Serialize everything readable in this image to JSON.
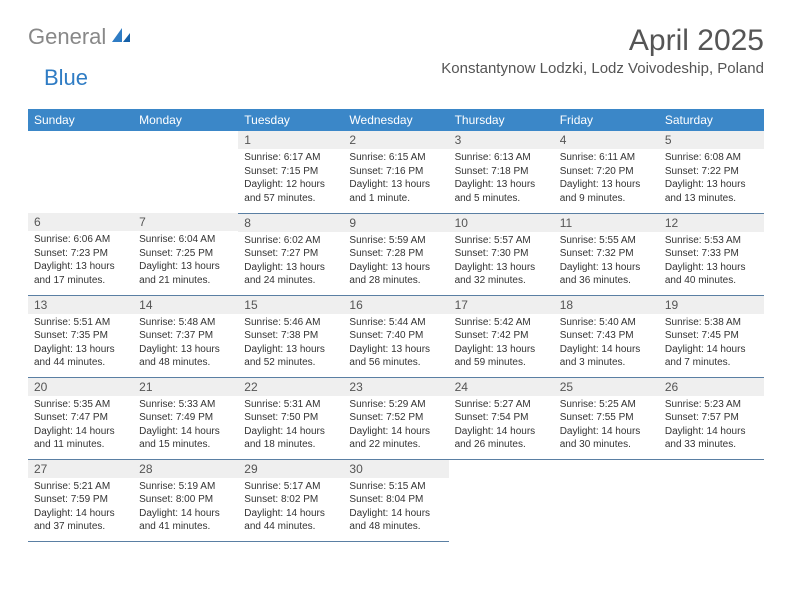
{
  "logo": {
    "text_gray": "General",
    "text_blue": "Blue"
  },
  "title": "April 2025",
  "subtitle": "Konstantynow Lodzki, Lodz Voivodeship, Poland",
  "colors": {
    "header_bg": "#3b87c8",
    "header_text": "#ffffff",
    "daynum_bg": "#efefef",
    "cell_border": "#5a7fa3",
    "logo_gray": "#888888",
    "logo_blue": "#2f7cc4",
    "background": "#ffffff",
    "body_text": "#333333"
  },
  "day_names": [
    "Sunday",
    "Monday",
    "Tuesday",
    "Wednesday",
    "Thursday",
    "Friday",
    "Saturday"
  ],
  "weeks": [
    [
      null,
      null,
      {
        "n": "1",
        "sr": "6:17 AM",
        "ss": "7:15 PM",
        "dl": "12 hours and 57 minutes."
      },
      {
        "n": "2",
        "sr": "6:15 AM",
        "ss": "7:16 PM",
        "dl": "13 hours and 1 minute."
      },
      {
        "n": "3",
        "sr": "6:13 AM",
        "ss": "7:18 PM",
        "dl": "13 hours and 5 minutes."
      },
      {
        "n": "4",
        "sr": "6:11 AM",
        "ss": "7:20 PM",
        "dl": "13 hours and 9 minutes."
      },
      {
        "n": "5",
        "sr": "6:08 AM",
        "ss": "7:22 PM",
        "dl": "13 hours and 13 minutes."
      }
    ],
    [
      {
        "n": "6",
        "sr": "6:06 AM",
        "ss": "7:23 PM",
        "dl": "13 hours and 17 minutes."
      },
      {
        "n": "7",
        "sr": "6:04 AM",
        "ss": "7:25 PM",
        "dl": "13 hours and 21 minutes."
      },
      {
        "n": "8",
        "sr": "6:02 AM",
        "ss": "7:27 PM",
        "dl": "13 hours and 24 minutes."
      },
      {
        "n": "9",
        "sr": "5:59 AM",
        "ss": "7:28 PM",
        "dl": "13 hours and 28 minutes."
      },
      {
        "n": "10",
        "sr": "5:57 AM",
        "ss": "7:30 PM",
        "dl": "13 hours and 32 minutes."
      },
      {
        "n": "11",
        "sr": "5:55 AM",
        "ss": "7:32 PM",
        "dl": "13 hours and 36 minutes."
      },
      {
        "n": "12",
        "sr": "5:53 AM",
        "ss": "7:33 PM",
        "dl": "13 hours and 40 minutes."
      }
    ],
    [
      {
        "n": "13",
        "sr": "5:51 AM",
        "ss": "7:35 PM",
        "dl": "13 hours and 44 minutes."
      },
      {
        "n": "14",
        "sr": "5:48 AM",
        "ss": "7:37 PM",
        "dl": "13 hours and 48 minutes."
      },
      {
        "n": "15",
        "sr": "5:46 AM",
        "ss": "7:38 PM",
        "dl": "13 hours and 52 minutes."
      },
      {
        "n": "16",
        "sr": "5:44 AM",
        "ss": "7:40 PM",
        "dl": "13 hours and 56 minutes."
      },
      {
        "n": "17",
        "sr": "5:42 AM",
        "ss": "7:42 PM",
        "dl": "13 hours and 59 minutes."
      },
      {
        "n": "18",
        "sr": "5:40 AM",
        "ss": "7:43 PM",
        "dl": "14 hours and 3 minutes."
      },
      {
        "n": "19",
        "sr": "5:38 AM",
        "ss": "7:45 PM",
        "dl": "14 hours and 7 minutes."
      }
    ],
    [
      {
        "n": "20",
        "sr": "5:35 AM",
        "ss": "7:47 PM",
        "dl": "14 hours and 11 minutes."
      },
      {
        "n": "21",
        "sr": "5:33 AM",
        "ss": "7:49 PM",
        "dl": "14 hours and 15 minutes."
      },
      {
        "n": "22",
        "sr": "5:31 AM",
        "ss": "7:50 PM",
        "dl": "14 hours and 18 minutes."
      },
      {
        "n": "23",
        "sr": "5:29 AM",
        "ss": "7:52 PM",
        "dl": "14 hours and 22 minutes."
      },
      {
        "n": "24",
        "sr": "5:27 AM",
        "ss": "7:54 PM",
        "dl": "14 hours and 26 minutes."
      },
      {
        "n": "25",
        "sr": "5:25 AM",
        "ss": "7:55 PM",
        "dl": "14 hours and 30 minutes."
      },
      {
        "n": "26",
        "sr": "5:23 AM",
        "ss": "7:57 PM",
        "dl": "14 hours and 33 minutes."
      }
    ],
    [
      {
        "n": "27",
        "sr": "5:21 AM",
        "ss": "7:59 PM",
        "dl": "14 hours and 37 minutes."
      },
      {
        "n": "28",
        "sr": "5:19 AM",
        "ss": "8:00 PM",
        "dl": "14 hours and 41 minutes."
      },
      {
        "n": "29",
        "sr": "5:17 AM",
        "ss": "8:02 PM",
        "dl": "14 hours and 44 minutes."
      },
      {
        "n": "30",
        "sr": "5:15 AM",
        "ss": "8:04 PM",
        "dl": "14 hours and 48 minutes."
      },
      null,
      null,
      null
    ]
  ],
  "labels": {
    "sunrise": "Sunrise:",
    "sunset": "Sunset:",
    "daylight": "Daylight:"
  }
}
